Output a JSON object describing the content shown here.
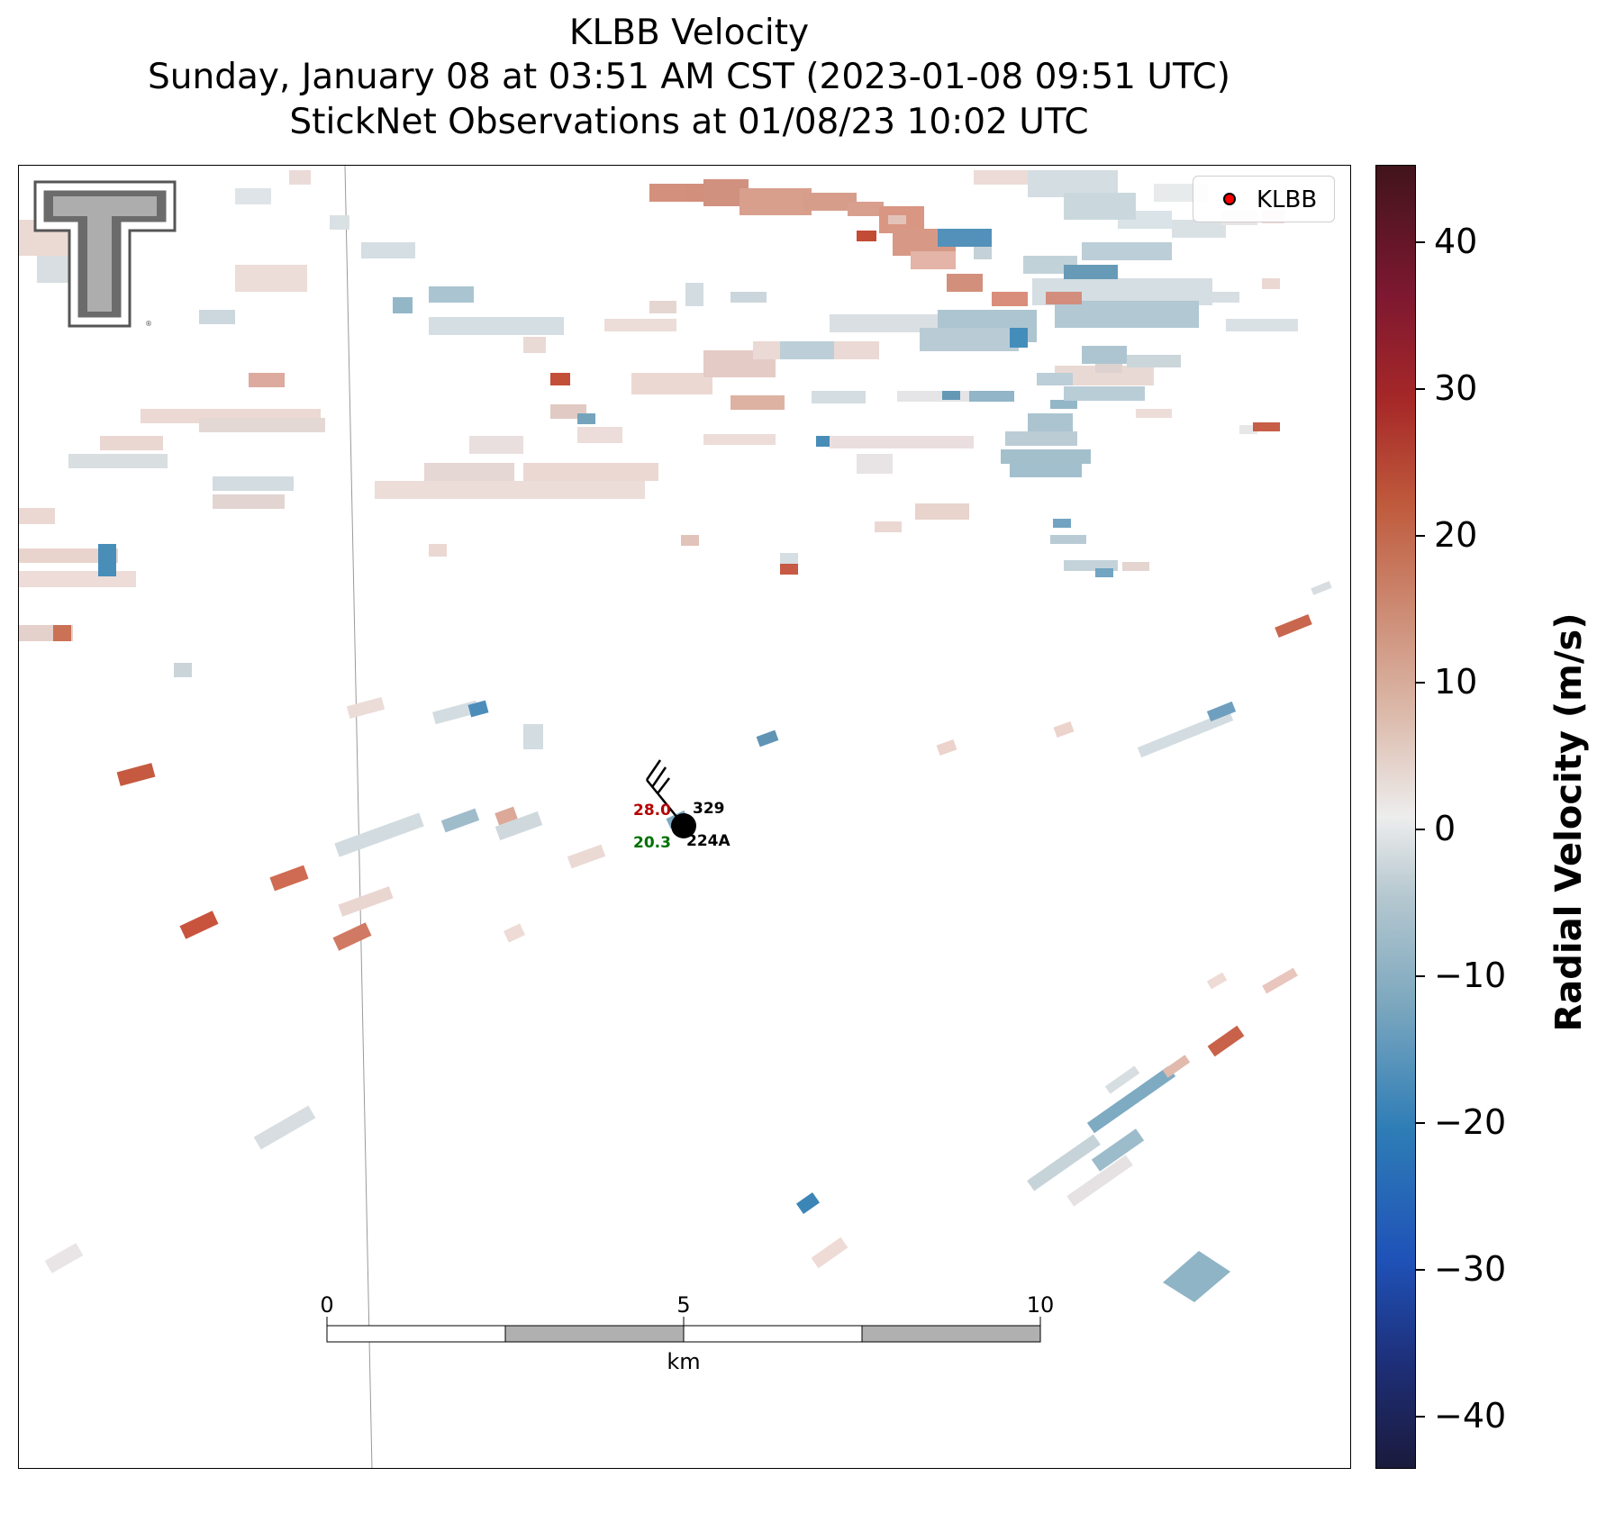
{
  "title": {
    "line1": "KLBB Velocity",
    "line2": "Sunday, January 08 at 03:51 AM CST (2023-01-08 09:51 UTC)",
    "line3": "StickNet Observations at 01/08/23 10:02 UTC"
  },
  "legend": {
    "label": "KLBB",
    "marker_color": "#ff0000"
  },
  "station": {
    "temperature": "28.0",
    "dewpoint": "20.3",
    "pressure": "329",
    "id": "224A",
    "temperature_color": "#b40000",
    "dewpoint_color": "#007000"
  },
  "scale_bar": {
    "ticks": [
      "0",
      "5",
      "10"
    ],
    "unit": "km"
  },
  "colorbar": {
    "label": "Radial Velocity (m/s)",
    "ticks": [
      "40",
      "30",
      "20",
      "10",
      "0",
      "−10",
      "−20",
      "−30",
      "−40"
    ],
    "range": [
      -45,
      45
    ],
    "colors": [
      "#1a1a3c",
      "#1f52b8",
      "#7fa9bf",
      "#ededed",
      "#cc8a72",
      "#a62828",
      "#41141c"
    ]
  },
  "logo": {
    "name": "texas-tech-double-t-logo"
  }
}
